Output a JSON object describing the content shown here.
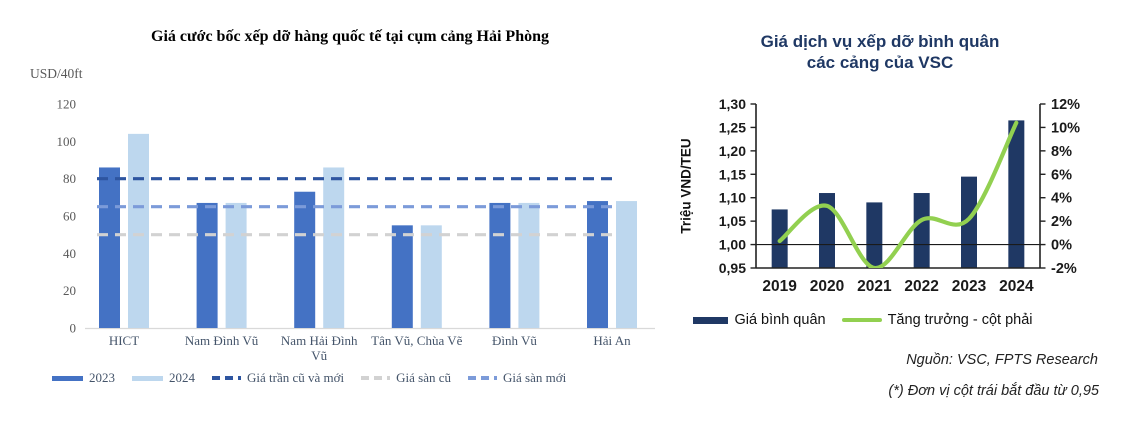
{
  "chart_data": [
    {
      "type": "bar",
      "title": "Giá cước bốc xếp dỡ hàng quốc tế tại cụm cảng Hải Phòng",
      "unit_label": "USD/40ft",
      "categories": [
        "HICT",
        "Nam Đình Vũ",
        "Nam Hải Đình Vũ",
        "Tân Vũ, Chùa Vẽ",
        "Đình Vũ",
        "Hải An"
      ],
      "categories_wrapped": [
        [
          "HICT"
        ],
        [
          "Nam Đình Vũ"
        ],
        [
          "Nam Hải Đình",
          "Vũ"
        ],
        [
          "Tân Vũ, Chùa Vẽ"
        ],
        [
          "Đình Vũ"
        ],
        [
          "Hải An"
        ]
      ],
      "series": [
        {
          "name": "2023",
          "color": "#4472C4",
          "values": [
            86,
            67,
            73,
            55,
            67,
            68
          ]
        },
        {
          "name": "2024",
          "color": "#BDD7EE",
          "values": [
            104,
            67,
            86,
            55,
            67,
            68
          ]
        }
      ],
      "ref_lines": [
        {
          "name": "Giá trần cũ và mới",
          "value": 80,
          "color": "#2E55A0"
        },
        {
          "name": "Giá sàn cũ",
          "value": 50,
          "color": "#D2D2D2"
        },
        {
          "name": "Giá sàn mới",
          "value": 65,
          "color": "#7C9BD9"
        }
      ],
      "ylim": [
        0,
        120
      ],
      "yticks": [
        0,
        20,
        40,
        60,
        80,
        100,
        120
      ],
      "grid": false,
      "legend_position": "bottom"
    },
    {
      "type": "bar+line",
      "title": "Giá dịch vụ xếp dỡ bình quân các cảng của VSC",
      "title_lines": [
        "Giá dịch vụ xếp dỡ bình quân",
        "các cảng của VSC"
      ],
      "title_color": "#1F3864",
      "ylabel": "Triệu VND/TEU",
      "categories": [
        "2019",
        "2020",
        "2021",
        "2022",
        "2023",
        "2024"
      ],
      "series": [
        {
          "name": "Giá bình quân",
          "type": "bar",
          "axis": "left",
          "color": "#1F3864",
          "values": [
            1.075,
            1.11,
            1.09,
            1.11,
            1.145,
            1.265
          ]
        },
        {
          "name": "Tăng trưởng - cột phải",
          "type": "line",
          "axis": "right",
          "color": "#92D050",
          "values_pct": [
            0.3,
            3.3,
            -2,
            2.1,
            2.2,
            10.4
          ]
        }
      ],
      "left_axis": {
        "min": 0.95,
        "max": 1.3,
        "step": 0.05,
        "tick_labels": [
          "1,30",
          "1,25",
          "1,20",
          "1,15",
          "1,10",
          "1,05",
          "1,00",
          "0,95"
        ]
      },
      "right_axis": {
        "min": -2,
        "max": 12,
        "step": 2,
        "tick_labels": [
          "12%",
          "10%",
          "8%",
          "6%",
          "4%",
          "2%",
          "0%",
          "-2%"
        ]
      },
      "source": "Nguồn: VSC, FPTS Research",
      "footnote": "(*) Đơn vị cột trái bắt đầu từ 0,95"
    }
  ]
}
